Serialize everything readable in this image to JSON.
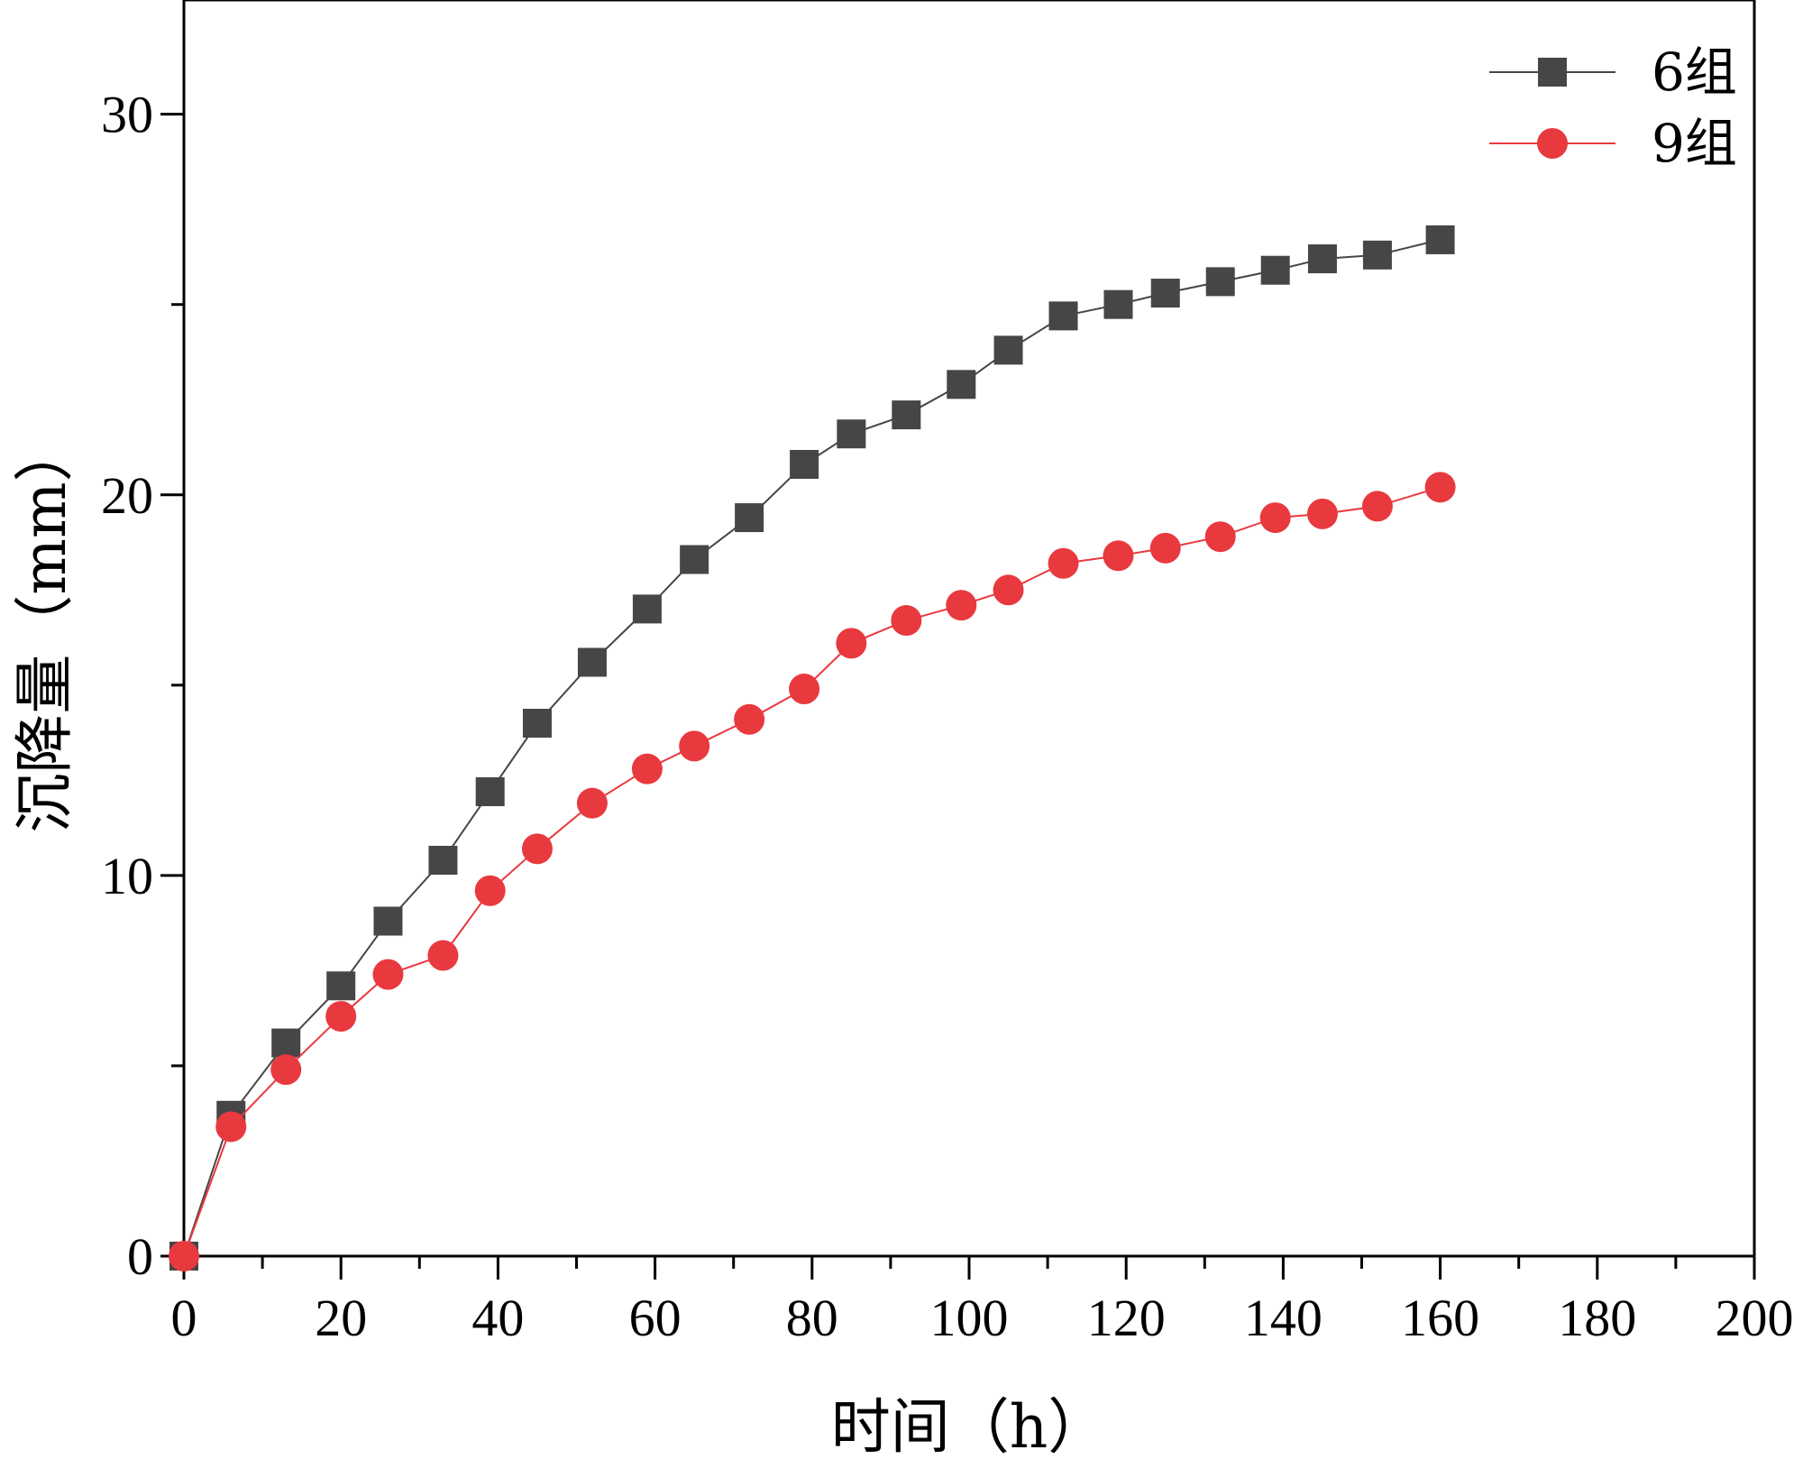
{
  "chart_data": {
    "type": "line",
    "xlabel": "时间（h）",
    "ylabel": "沉降量（mm）",
    "xlim": [
      0,
      200
    ],
    "ylim": [
      0,
      33
    ],
    "xticks": [
      0,
      20,
      40,
      60,
      80,
      100,
      120,
      140,
      160,
      180,
      200
    ],
    "yticks": [
      0,
      10,
      20,
      30
    ],
    "grid": false,
    "legend_position": "top-right",
    "series": [
      {
        "name": "6组",
        "color": "#464646",
        "marker": "square",
        "x": [
          0,
          6,
          13,
          20,
          26,
          33,
          39,
          45,
          52,
          59,
          65,
          72,
          79,
          85,
          92,
          99,
          105,
          112,
          119,
          125,
          132,
          139,
          145,
          152,
          160
        ],
        "y": [
          0,
          3.7,
          5.6,
          7.1,
          8.8,
          10.4,
          12.2,
          14.0,
          15.6,
          17.0,
          18.3,
          19.4,
          20.8,
          21.6,
          22.1,
          22.9,
          23.8,
          24.7,
          25.0,
          25.3,
          25.6,
          25.9,
          26.2,
          26.3,
          26.7
        ]
      },
      {
        "name": "9组",
        "color": "#e8393f",
        "marker": "circle",
        "x": [
          0,
          6,
          13,
          20,
          26,
          33,
          39,
          45,
          52,
          59,
          65,
          72,
          79,
          85,
          92,
          99,
          105,
          112,
          119,
          125,
          132,
          139,
          145,
          152,
          160
        ],
        "y": [
          0,
          3.4,
          4.9,
          6.3,
          7.4,
          7.9,
          9.6,
          10.7,
          11.9,
          12.8,
          13.4,
          14.1,
          14.9,
          16.1,
          16.7,
          17.1,
          17.5,
          18.2,
          18.4,
          18.6,
          18.9,
          19.4,
          19.5,
          19.7,
          20.2
        ]
      }
    ]
  }
}
